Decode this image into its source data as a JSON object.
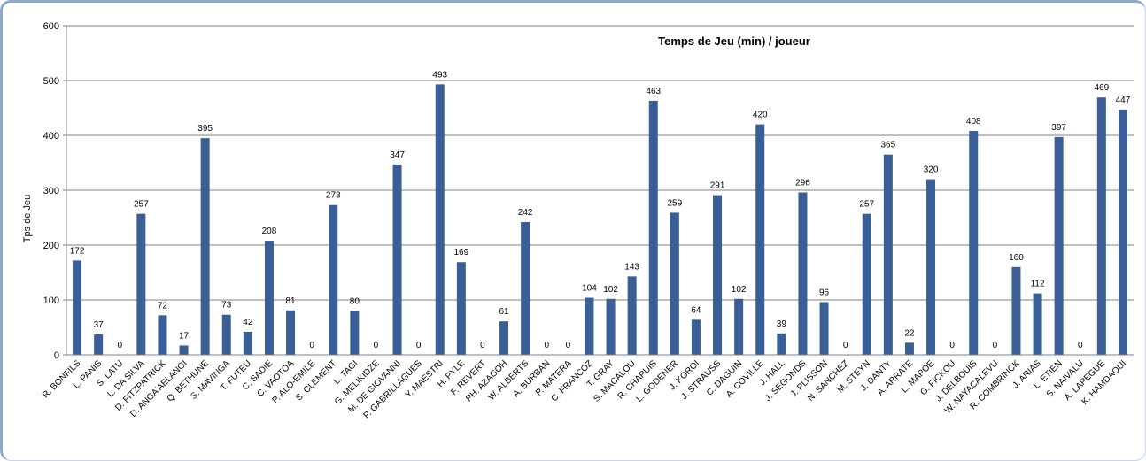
{
  "chart_data": {
    "type": "bar",
    "title": "Temps de Jeu (min) / joueur",
    "ylabel": "Tps de Jeu",
    "xlabel": "",
    "ylim": [
      0,
      600
    ],
    "yticks": [
      "0",
      "100",
      "200",
      "300",
      "400",
      "500",
      "600"
    ],
    "grid": true,
    "legend": "none",
    "bar_color": "#3a5f96",
    "categories": [
      "R. BONFILS",
      "L. PANIS",
      "S. LATU",
      "L. DA SILVA",
      "D. FITZPATRICK",
      "D. ANGA'AELANGI",
      "Q. BETHUNE",
      "S. MAVINGA",
      "T. FUTEU",
      "C. SADIE",
      "C. VAOTOA",
      "P. ALO-EMILE",
      "S. CLEMENT",
      "L. TAGI",
      "G. MELIKIDZE",
      "M. DE GIOVANNI",
      "P. GABRILLAGUES",
      "Y. MAESTRI",
      "H. PYLE",
      "F. REVERT",
      "PH. AZAGOH",
      "W. ALBERTS",
      "A. BURBAN",
      "P. MATERA",
      "C. FRANCOZ",
      "T. GRAY",
      "S. MACALOU",
      "R. CHAPUIS",
      "L. GODENER",
      "J. KOROI",
      "J. STRAUSS",
      "C. DAGUIN",
      "A. COVILLE",
      "J. HALL",
      "J. SEGONDS",
      "J. PLISSON",
      "N. SANCHEZ",
      "M. STEYN",
      "J. DANTY",
      "A. ARRATE",
      "L. MAPOE",
      "G. FICKOU",
      "J. DELBOUIS",
      "W. NAYACALEVU",
      "R. COMBRINCK",
      "J. ARIAS",
      "L. ETIEN",
      "S. NAIVALU",
      "A. LAPEGUE",
      "K. HAMDAOUI"
    ],
    "values": [
      172,
      37,
      0,
      257,
      72,
      17,
      395,
      73,
      42,
      208,
      81,
      0,
      273,
      80,
      0,
      347,
      0,
      493,
      169,
      0,
      61,
      242,
      0,
      0,
      104,
      102,
      143,
      463,
      259,
      64,
      291,
      102,
      420,
      39,
      296,
      96,
      0,
      257,
      365,
      22,
      320,
      0,
      408,
      0,
      160,
      112,
      397,
      0,
      469,
      447
    ]
  }
}
